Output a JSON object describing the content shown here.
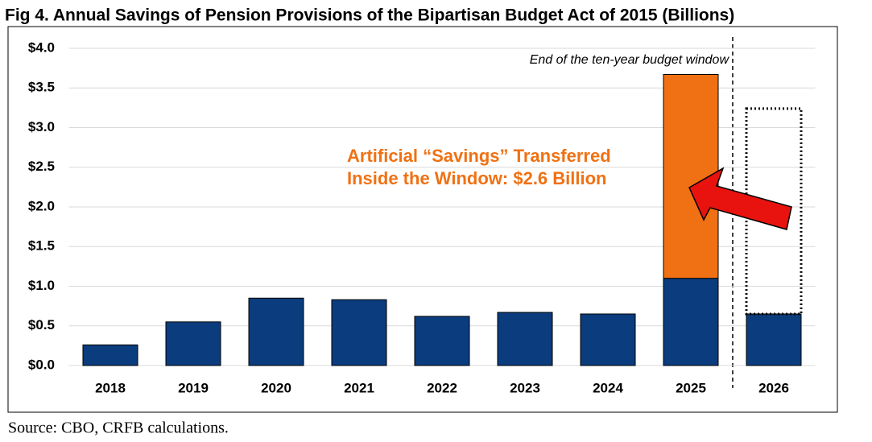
{
  "chart_data": {
    "type": "stacked-bar",
    "title": "Fig 4. Annual Savings of Pension Provisions of the Bipartisan Budget Act of 2015 (Billions)",
    "categories": [
      "2018",
      "2019",
      "2020",
      "2021",
      "2022",
      "2023",
      "2024",
      "2025",
      "2026"
    ],
    "series": [
      {
        "color": "#0b3c7d",
        "values": [
          0.26,
          0.55,
          0.85,
          0.83,
          0.62,
          0.67,
          0.65,
          1.1,
          0.65
        ]
      },
      {
        "color": "#f07113",
        "values": [
          null,
          null,
          null,
          null,
          null,
          null,
          null,
          2.57,
          null
        ]
      },
      {
        "color": "#000000",
        "style": "dotted",
        "values": [
          null,
          null,
          null,
          null,
          null,
          null,
          null,
          null,
          2.59
        ]
      }
    ],
    "ylim": [
      0,
      4
    ],
    "yticks": [
      {
        "value": 0,
        "label": "$0.0"
      },
      {
        "value": 0.5,
        "label": "$0.5"
      },
      {
        "value": 1,
        "label": "$1.0"
      },
      {
        "value": 1.5,
        "label": "$1.5"
      },
      {
        "value": 2,
        "label": "$2.0"
      },
      {
        "value": 2.5,
        "label": "$2.5"
      },
      {
        "value": 3,
        "label": "$3.0"
      },
      {
        "value": 3.5,
        "label": "$3.5"
      },
      {
        "value": 4,
        "label": "$4.0"
      }
    ],
    "grid": true,
    "annotations": [
      "End of the ten-year budget window",
      "Artificial “Savings” Transferred",
      "Inside the Window: $2.6 Billion"
    ],
    "source": "Source: CBO, CRFB calculations."
  }
}
